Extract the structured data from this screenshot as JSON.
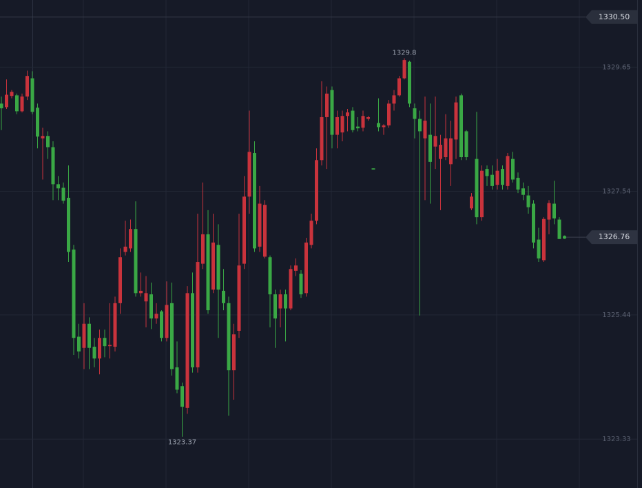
{
  "chart_data": {
    "type": "candlestick",
    "ylim": [
      1322.5,
      1330.79
    ],
    "yticks": [
      1329.65,
      1327.54,
      1325.44,
      1323.33
    ],
    "grid": true,
    "up_color": "#3aa845",
    "down_color": "#c9333c",
    "open": [
      1328.95,
      1329.18,
      1329.23,
      1328.9,
      1329.15,
      1329.5,
      1328.89,
      1328.47,
      1328.48,
      1328.29,
      1327.66,
      1327.59,
      1327.38,
      1326.51,
      1325.05,
      1324.82,
      1325.29,
      1324.88,
      1324.7,
      1325.05,
      1324.91,
      1324.93,
      1325.64,
      1326.42,
      1326.6,
      1326.9,
      1325.81,
      1325.85,
      1325.81,
      1325.38,
      1325.46,
      1325.05,
      1325.61,
      1324.52,
      1324.17,
      1323.88,
      1325.81,
      1324.55,
      1326.34,
      1326.81,
      1325.52,
      1326.67,
      1325.87,
      1325.64,
      1324.5,
      1325.11,
      1326.28,
      1327.45,
      1328.21,
      1326.57,
      1327.33,
      1327.31,
      1325.79,
      1325.38,
      1325.79,
      1325.55,
      1326.22,
      1326.28,
      1325.79,
      1326.67,
      1327.04,
      1328.07,
      1328.8,
      1329.2,
      1328.5,
      1328.8,
      1328.82,
      1328.88,
      1328.58,
      1328.61,
      1328.82,
      1328.8,
      1327.91,
      1328.63,
      1328.66,
      1329.03,
      1329.17,
      1329.46,
      1329.77,
      1329.03,
      1328.77,
      1328.56,
      1328.74,
      1328.04,
      1328.48,
      1328.33,
      1328.44,
      1328.44,
      1329.05,
      1328.12,
      1328.12,
      1327.45,
      1327.1,
      1327.89,
      1327.8,
      1327.63,
      1327.89,
      1327.65,
      1328.14,
      1327.74,
      1327.57,
      1327.48,
      1327.27,
      1326.67,
      1326.4,
      1327.07,
      1327.34,
      1327.08,
      1326.73,
      1326.75
    ],
    "high": [
      1329.15,
      1329.44,
      1329.26,
      1329.2,
      1329.2,
      1329.59,
      1329.58,
      1329.03,
      1328.62,
      1328.56,
      1328.39,
      1327.8,
      1327.69,
      1327.98,
      1326.63,
      1325.29,
      1325.64,
      1325.4,
      1325.05,
      1325.19,
      1325.19,
      1325.64,
      1325.75,
      1326.57,
      1327.04,
      1327.06,
      1327.37,
      1326.16,
      1326.1,
      1325.99,
      1325.64,
      1325.52,
      1326.01,
      1325.99,
      1324.99,
      1324.29,
      1325.93,
      1326.16,
      1327.16,
      1327.69,
      1327.22,
      1327.16,
      1326.98,
      1326.22,
      1325.75,
      1325.29,
      1327.16,
      1327.8,
      1328.91,
      1328.39,
      1327.63,
      1327.39,
      1326.45,
      1325.87,
      1325.87,
      1325.87,
      1326.28,
      1326.4,
      1326.2,
      1326.75,
      1327.16,
      1328.27,
      1329.41,
      1329.32,
      1329.32,
      1328.91,
      1328.91,
      1328.94,
      1328.97,
      1328.8,
      1328.91,
      1328.82,
      1327.93,
      1329.12,
      1328.68,
      1329.09,
      1329.26,
      1329.5,
      1329.8,
      1329.76,
      1329.03,
      1328.91,
      1329.15,
      1329.03,
      1329.15,
      1328.5,
      1328.85,
      1328.74,
      1329.15,
      1329.2,
      1328.58,
      1327.51,
      1328.89,
      1327.98,
      1327.98,
      1327.98,
      1328.09,
      1327.98,
      1328.19,
      1328.21,
      1327.86,
      1327.69,
      1327.63,
      1327.39,
      1326.92,
      1327.1,
      1327.39,
      1327.72,
      1327.1,
      1326.78
    ],
    "low": [
      1328.58,
      1328.94,
      1329.12,
      1328.85,
      1328.88,
      1329.09,
      1328.85,
      1328.27,
      1327.74,
      1328.09,
      1327.39,
      1327.39,
      1327.33,
      1326.34,
      1324.76,
      1324.7,
      1324.52,
      1324.52,
      1324.55,
      1324.43,
      1324.72,
      1324.7,
      1324.82,
      1325.46,
      1326.45,
      1326.51,
      1325.75,
      1325.75,
      1325.23,
      1325.2,
      1325.29,
      1324.99,
      1324.99,
      1324.41,
      1324.11,
      1323.37,
      1323.76,
      1324.46,
      1324.46,
      1326.22,
      1325.46,
      1325.81,
      1325.05,
      1325.52,
      1323.73,
      1324.0,
      1325.05,
      1326.22,
      1327.16,
      1326.51,
      1326.51,
      1326.4,
      1325.23,
      1324.88,
      1325.23,
      1324.99,
      1325.52,
      1326.1,
      1325.73,
      1325.75,
      1326.57,
      1326.98,
      1327.98,
      1327.92,
      1328.27,
      1328.27,
      1328.39,
      1328.56,
      1328.54,
      1328.56,
      1328.56,
      1328.74,
      1327.91,
      1328.56,
      1328.5,
      1328.62,
      1328.91,
      1329.15,
      1329.44,
      1328.97,
      1328.44,
      1325.43,
      1327.39,
      1327.33,
      1327.92,
      1327.22,
      1328.07,
      1327.63,
      1328.09,
      1328.07,
      1328.07,
      1327.22,
      1326.98,
      1327.04,
      1327.63,
      1327.57,
      1327.57,
      1327.57,
      1327.57,
      1327.69,
      1327.51,
      1327.39,
      1327.16,
      1326.57,
      1326.34,
      1326.34,
      1326.81,
      1326.98,
      1326.73,
      1326.74
    ],
    "close": [
      1329.03,
      1328.97,
      1329.16,
      1329.17,
      1328.9,
      1329.15,
      1329.46,
      1328.96,
      1328.44,
      1328.48,
      1328.29,
      1327.66,
      1327.6,
      1327.43,
      1326.55,
      1325.07,
      1324.88,
      1325.29,
      1324.9,
      1324.7,
      1325.05,
      1324.91,
      1324.9,
      1325.64,
      1326.51,
      1326.57,
      1326.9,
      1325.81,
      1325.67,
      1325.79,
      1325.38,
      1325.5,
      1325.05,
      1325.64,
      1324.55,
      1324.23,
      1323.86,
      1325.81,
      1324.55,
      1326.31,
      1326.81,
      1325.87,
      1326.63,
      1325.85,
      1325.64,
      1324.5,
      1325.17,
      1326.31,
      1327.45,
      1328.19,
      1326.6,
      1326.43,
      1326.42,
      1325.79,
      1325.55,
      1325.79,
      1325.55,
      1326.19,
      1326.14,
      1325.81,
      1326.63,
      1327.04,
      1328.07,
      1328.8,
      1329.26,
      1328.5,
      1328.54,
      1328.82,
      1328.91,
      1328.64,
      1328.62,
      1328.77,
      1327.93,
      1328.7,
      1328.63,
      1328.66,
      1329.03,
      1329.17,
      1329.46,
      1329.74,
      1328.95,
      1328.77,
      1328.44,
      1328.5,
      1328.3,
      1328.09,
      1328.12,
      1328.0,
      1328.42,
      1329.17,
      1328.56,
      1327.25,
      1328.09,
      1327.1,
      1327.92,
      1327.82,
      1327.65,
      1327.92,
      1327.63,
      1328.09,
      1327.77,
      1327.59,
      1327.47,
      1327.33,
      1326.72,
      1326.37,
      1327.06,
      1327.33,
      1327.06,
      1326.76
    ],
    "max_label": "1329.8",
    "min_label": "1323.37",
    "price_lines": [
      {
        "value": 1330.5,
        "label": "1330.50"
      }
    ],
    "last_price": {
      "value": 1326.76,
      "label": "1326.76"
    }
  }
}
